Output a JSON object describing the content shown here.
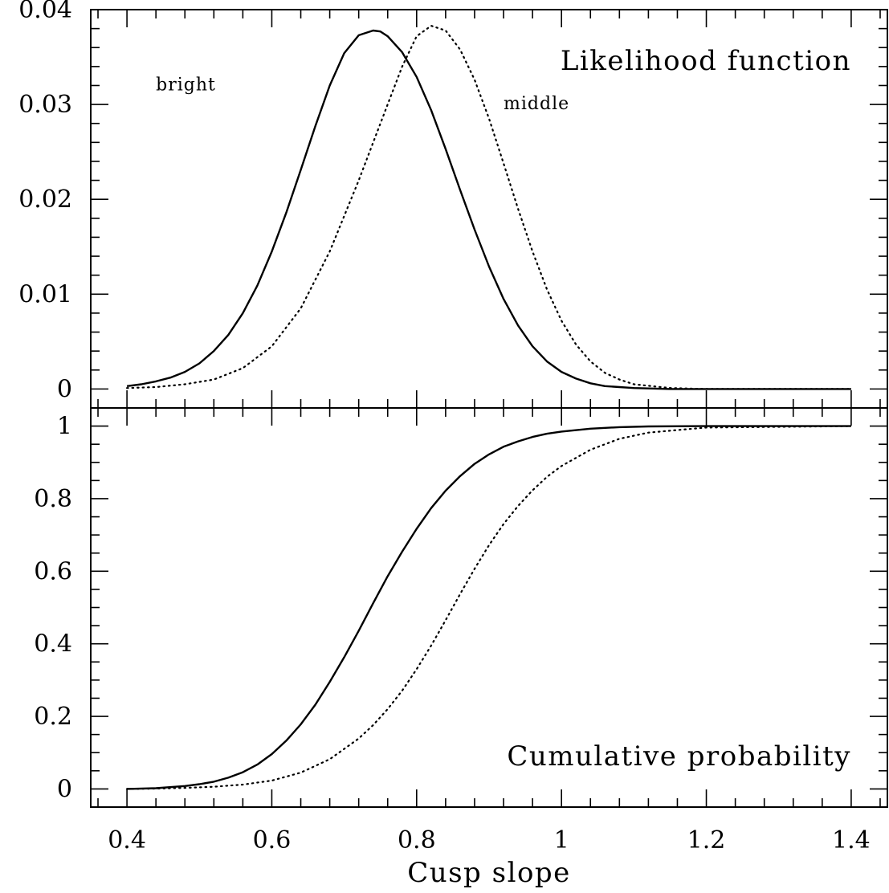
{
  "chart_data": [
    {
      "type": "line",
      "panel": "top",
      "annotation": "Likelihood function",
      "xlim": [
        0.35,
        1.45
      ],
      "ylim": [
        -0.002,
        0.04
      ],
      "yticks": [
        {
          "value": 0,
          "label": "0"
        },
        {
          "value": 0.01,
          "label": "0.01"
        },
        {
          "value": 0.02,
          "label": "0.02"
        },
        {
          "value": 0.03,
          "label": "0.03"
        },
        {
          "value": 0.04,
          "label": "0.04"
        }
      ],
      "series": [
        {
          "name": "bright",
          "style": "solid",
          "label_at": [
            0.44,
            0.0315
          ],
          "x": [
            0.4,
            0.42,
            0.44,
            0.46,
            0.48,
            0.5,
            0.52,
            0.54,
            0.56,
            0.58,
            0.6,
            0.62,
            0.64,
            0.66,
            0.68,
            0.7,
            0.72,
            0.74,
            0.75,
            0.76,
            0.78,
            0.8,
            0.82,
            0.84,
            0.86,
            0.88,
            0.9,
            0.92,
            0.94,
            0.96,
            0.98,
            1.0,
            1.02,
            1.04,
            1.06,
            1.08,
            1.1,
            1.15,
            1.2,
            1.3,
            1.4
          ],
          "values": [
            0.0003,
            0.0005,
            0.0008,
            0.0012,
            0.0018,
            0.0027,
            0.004,
            0.0057,
            0.008,
            0.0109,
            0.0145,
            0.0186,
            0.0231,
            0.0277,
            0.032,
            0.0354,
            0.0373,
            0.0378,
            0.0377,
            0.0372,
            0.0355,
            0.0329,
            0.0294,
            0.0253,
            0.021,
            0.0168,
            0.0129,
            0.0095,
            0.0067,
            0.0045,
            0.0029,
            0.0018,
            0.0011,
            0.0006,
            0.0003,
            0.0002,
            0.0001,
            0.0,
            0.0,
            0.0,
            0.0
          ]
        },
        {
          "name": "middle",
          "style": "dotted",
          "label_at": [
            0.92,
            0.0295
          ],
          "x": [
            0.4,
            0.44,
            0.48,
            0.52,
            0.56,
            0.6,
            0.64,
            0.68,
            0.72,
            0.76,
            0.78,
            0.8,
            0.82,
            0.84,
            0.86,
            0.88,
            0.9,
            0.92,
            0.94,
            0.96,
            0.98,
            1.0,
            1.02,
            1.04,
            1.06,
            1.08,
            1.1,
            1.15,
            1.2,
            1.25,
            1.3,
            1.4
          ],
          "values": [
            0.0001,
            0.0002,
            0.0005,
            0.001,
            0.0022,
            0.0045,
            0.0085,
            0.0145,
            0.022,
            0.03,
            0.034,
            0.0372,
            0.0383,
            0.0378,
            0.0358,
            0.0326,
            0.0285,
            0.0238,
            0.019,
            0.0145,
            0.0105,
            0.0072,
            0.0047,
            0.0029,
            0.0017,
            0.001,
            0.0005,
            0.0001,
            0.0,
            0.0,
            0.0,
            0.0
          ]
        }
      ]
    },
    {
      "type": "line",
      "panel": "bottom",
      "annotation": "Cumulative probability",
      "xlabel": "Cusp slope",
      "xlim": [
        0.35,
        1.45
      ],
      "ylim": [
        -0.05,
        1.05
      ],
      "xticks": [
        {
          "value": 0.4,
          "label": "0.4"
        },
        {
          "value": 0.6,
          "label": "0.6"
        },
        {
          "value": 0.8,
          "label": "0.8"
        },
        {
          "value": 1.0,
          "label": "1"
        },
        {
          "value": 1.2,
          "label": "1.2"
        },
        {
          "value": 1.4,
          "label": "1.4"
        }
      ],
      "yticks": [
        {
          "value": 0,
          "label": "0"
        },
        {
          "value": 0.2,
          "label": "0.2"
        },
        {
          "value": 0.4,
          "label": "0.4"
        },
        {
          "value": 0.6,
          "label": "0.6"
        },
        {
          "value": 0.8,
          "label": "0.8"
        },
        {
          "value": 1.0,
          "label": "1"
        }
      ],
      "series": [
        {
          "style": "solid",
          "x": [
            0.4,
            0.44,
            0.48,
            0.5,
            0.52,
            0.54,
            0.56,
            0.58,
            0.6,
            0.62,
            0.64,
            0.66,
            0.68,
            0.7,
            0.72,
            0.74,
            0.76,
            0.78,
            0.8,
            0.82,
            0.84,
            0.86,
            0.88,
            0.9,
            0.92,
            0.94,
            0.96,
            0.98,
            1.0,
            1.04,
            1.08,
            1.12,
            1.2,
            1.4
          ],
          "values": [
            0.0,
            0.002,
            0.008,
            0.013,
            0.02,
            0.031,
            0.046,
            0.067,
            0.096,
            0.133,
            0.178,
            0.232,
            0.295,
            0.363,
            0.436,
            0.512,
            0.586,
            0.654,
            0.717,
            0.774,
            0.822,
            0.862,
            0.896,
            0.922,
            0.943,
            0.958,
            0.97,
            0.979,
            0.985,
            0.993,
            0.997,
            0.999,
            1.0,
            1.0
          ]
        },
        {
          "style": "dotted",
          "x": [
            0.4,
            0.44,
            0.48,
            0.52,
            0.56,
            0.6,
            0.64,
            0.68,
            0.72,
            0.74,
            0.76,
            0.78,
            0.8,
            0.82,
            0.84,
            0.86,
            0.88,
            0.9,
            0.92,
            0.94,
            0.96,
            0.98,
            1.0,
            1.04,
            1.08,
            1.12,
            1.2,
            1.4
          ],
          "values": [
            0.0,
            0.001,
            0.003,
            0.006,
            0.012,
            0.023,
            0.045,
            0.082,
            0.139,
            0.176,
            0.22,
            0.271,
            0.33,
            0.395,
            0.465,
            0.537,
            0.607,
            0.672,
            0.73,
            0.78,
            0.823,
            0.86,
            0.89,
            0.935,
            0.965,
            0.982,
            0.996,
            1.0
          ]
        }
      ]
    }
  ]
}
